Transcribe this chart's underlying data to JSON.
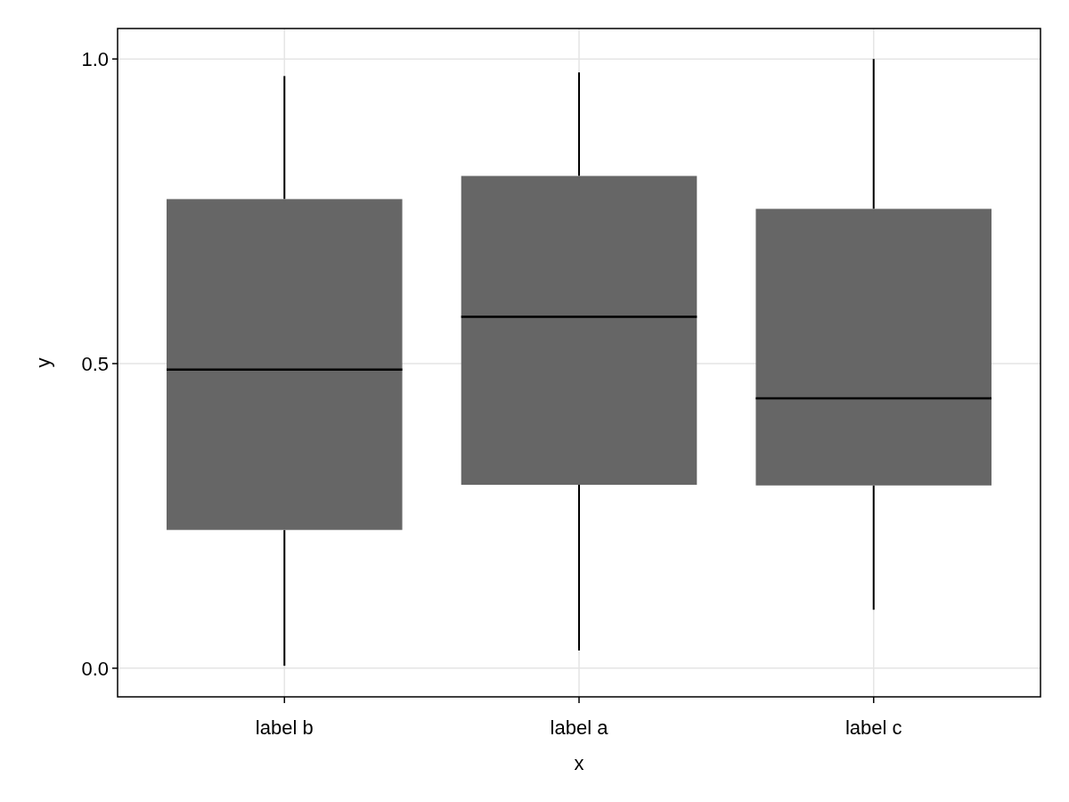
{
  "chart_data": {
    "type": "box",
    "xlabel": "x",
    "ylabel": "y",
    "categories": [
      "label b",
      "label a",
      "label c"
    ],
    "boxes": [
      {
        "low": 0.004,
        "q1": 0.227,
        "median": 0.49,
        "q3": 0.77,
        "high": 0.972
      },
      {
        "low": 0.029,
        "q1": 0.301,
        "median": 0.577,
        "q3": 0.808,
        "high": 0.978
      },
      {
        "low": 0.096,
        "q1": 0.3,
        "median": 0.443,
        "q3": 0.754,
        "high": 1.0
      }
    ],
    "color": "#666666",
    "ylim": [
      -0.047,
      1.05
    ],
    "yticks": [
      {
        "value": 0,
        "label": "0.0"
      },
      0.5,
      {
        "value": 1,
        "label": "1.0"
      }
    ],
    "grid": true
  }
}
